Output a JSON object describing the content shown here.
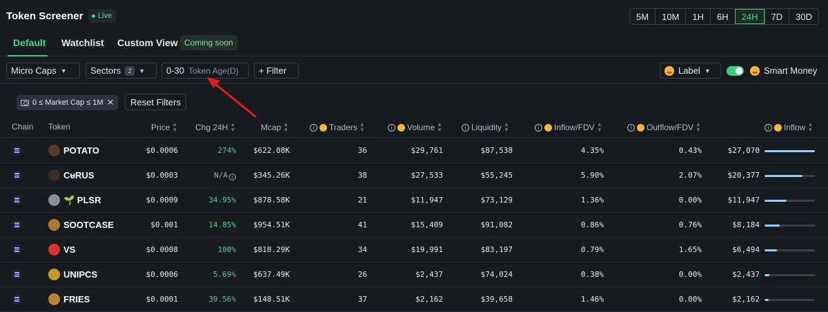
{
  "header": {
    "title": "Token Screener",
    "live_label": "Live"
  },
  "timeframes": {
    "options": [
      "5M",
      "10M",
      "1H",
      "6H",
      "24H",
      "7D",
      "30D"
    ],
    "selected": "24H"
  },
  "tabs": [
    {
      "label": "Default",
      "active": true
    },
    {
      "label": "Watchlist",
      "active": false
    },
    {
      "label": "Custom View",
      "active": false
    }
  ],
  "coming_soon_label": "Coming soon",
  "filters": {
    "micro_caps": "Micro Caps",
    "sectors_label": "Sectors",
    "sectors_count": "2",
    "token_age_value": "0-30",
    "token_age_label": "Token Age(D)",
    "add_filter": "+ Filter",
    "label_button": "Label",
    "smart_money": "Smart Money",
    "smart_money_on": true
  },
  "active_filter_chip": "0 ≤ Market Cap ≤ 1M",
  "reset_filters": "Reset Filters",
  "columns": {
    "chain": "Chain",
    "token": "Token",
    "price": "Price",
    "chg": "Chg 24H",
    "mcap": "Mcap",
    "traders": "Traders",
    "volume": "Volume",
    "liquidity": "Liquidity",
    "inflow_fdv": "Inflow/FDV",
    "outflow_fdv": "Outflow/FDV",
    "inflow": "Inflow"
  },
  "colors": {
    "accent": "#3fca80",
    "positive": "#4fd48e",
    "bar": "#8fd0ff"
  },
  "rows": [
    {
      "token": "POTATO",
      "icon_color": "#5a3a22",
      "price": "$0.0006",
      "chg": "274%",
      "chg_na": false,
      "mcap": "$622.08K",
      "traders": "36",
      "volume": "$29,761",
      "liquidity": "$87,538",
      "inflow_fdv": "4.35%",
      "outflow_fdv": "0.43%",
      "inflow": "$27,070",
      "inflow_share": 1.0
    },
    {
      "token": "CᵾRUS",
      "icon_color": "#3b2d22",
      "price": "$0.0003",
      "chg": "N/A",
      "chg_na": true,
      "mcap": "$345.26K",
      "traders": "38",
      "volume": "$27,533",
      "liquidity": "$55,245",
      "inflow_fdv": "5.90%",
      "outflow_fdv": "2.07%",
      "inflow": "$20,377",
      "inflow_share": 0.75
    },
    {
      "token": "🌱 PLSR",
      "icon_color": "#8a8f96",
      "price": "$0.0009",
      "chg": "34.95%",
      "chg_na": false,
      "mcap": "$878.58K",
      "traders": "21",
      "volume": "$11,947",
      "liquidity": "$73,129",
      "inflow_fdv": "1.36%",
      "outflow_fdv": "0.00%",
      "inflow": "$11,947",
      "inflow_share": 0.44
    },
    {
      "token": "SOOTCASE",
      "icon_color": "#b07a35",
      "price": "$0.001",
      "chg": "14.85%",
      "chg_na": false,
      "mcap": "$954.51K",
      "traders": "41",
      "volume": "$15,409",
      "liquidity": "$91,082",
      "inflow_fdv": "0.86%",
      "outflow_fdv": "0.76%",
      "inflow": "$8,184",
      "inflow_share": 0.3
    },
    {
      "token": "VS",
      "icon_color": "#d8332f",
      "price": "$0.0008",
      "chg": "100%",
      "chg_na": false,
      "mcap": "$818.29K",
      "traders": "34",
      "volume": "$19,991",
      "liquidity": "$83,197",
      "inflow_fdv": "0.79%",
      "outflow_fdv": "1.65%",
      "inflow": "$6,494",
      "inflow_share": 0.24
    },
    {
      "token": "UNIPCS",
      "icon_color": "#c9962d",
      "price": "$0.0006",
      "chg": "5.69%",
      "chg_na": false,
      "mcap": "$637.49K",
      "traders": "26",
      "volume": "$2,437",
      "liquidity": "$74,024",
      "inflow_fdv": "0.38%",
      "outflow_fdv": "0.00%",
      "inflow": "$2,437",
      "inflow_share": 0.09
    },
    {
      "token": "FRIES",
      "icon_color": "#b8843a",
      "price": "$0.0001",
      "chg": "39.56%",
      "chg_na": false,
      "mcap": "$148.51K",
      "traders": "37",
      "volume": "$2,162",
      "liquidity": "$39,658",
      "inflow_fdv": "1.46%",
      "outflow_fdv": "0.00%",
      "inflow": "$2,162",
      "inflow_share": 0.08
    }
  ]
}
